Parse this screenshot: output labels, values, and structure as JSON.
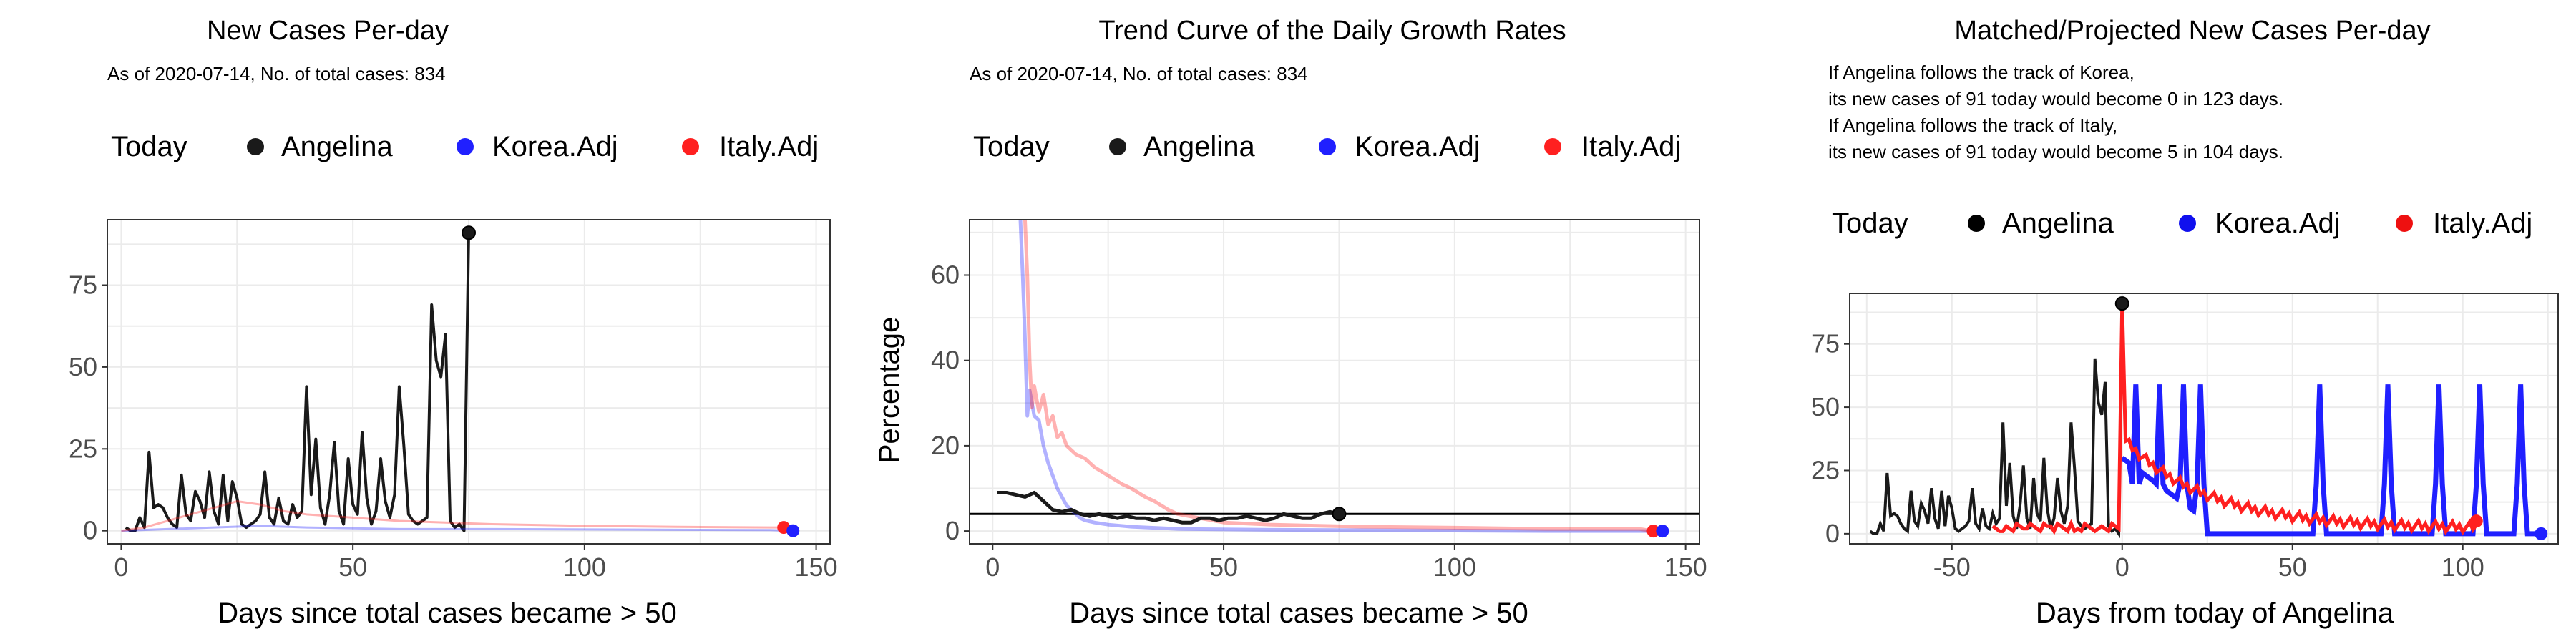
{
  "colors": {
    "angelina": "#1a1a1a",
    "korea": "#2020ff",
    "italy": "#ff2020",
    "grid": "#ebebeb",
    "panel_border": "#333333"
  },
  "chart_data": [
    {
      "type": "line",
      "title": "New Cases Per-day",
      "subtitle": "As of 2020-07-14, No. of total cases: 834",
      "xlabel": "Days since total cases became > 50",
      "ylabel": "",
      "xlim": [
        -3,
        153
      ],
      "ylim": [
        -4,
        95
      ],
      "x_ticks": [
        0,
        50,
        100,
        150
      ],
      "y_ticks": [
        0,
        25,
        50,
        75
      ],
      "grid": true,
      "legend": {
        "title": "Today",
        "position": "top",
        "entries": [
          "Angelina",
          "Korea.Adj",
          "Italy.Adj"
        ]
      },
      "series": [
        {
          "name": "Angelina",
          "color_key": "angelina",
          "opacity": 1,
          "width": 4,
          "x": [
            1,
            2,
            3,
            4,
            5,
            6,
            7,
            8,
            9,
            10,
            11,
            12,
            13,
            14,
            15,
            16,
            17,
            18,
            19,
            20,
            21,
            22,
            23,
            24,
            25,
            26,
            27,
            28,
            29,
            30,
            31,
            32,
            33,
            34,
            35,
            36,
            37,
            38,
            39,
            40,
            41,
            42,
            43,
            44,
            45,
            46,
            47,
            48,
            49,
            50,
            51,
            52,
            53,
            54,
            55,
            56,
            57,
            58,
            59,
            60,
            61,
            62,
            63,
            64,
            65,
            66,
            67,
            68,
            69,
            70,
            71,
            72,
            73,
            74,
            75
          ],
          "y": [
            1,
            0,
            0,
            4,
            1,
            24,
            7,
            8,
            7,
            4,
            2,
            1,
            17,
            5,
            3,
            12,
            9,
            4,
            18,
            6,
            2,
            17,
            3,
            15,
            10,
            2,
            1,
            2,
            3,
            5,
            18,
            4,
            2,
            10,
            3,
            2,
            8,
            4,
            6,
            44,
            11,
            28,
            7,
            2,
            11,
            27,
            6,
            2,
            22,
            8,
            5,
            30,
            10,
            2,
            6,
            22,
            9,
            4,
            11,
            44,
            26,
            5,
            3,
            2,
            3,
            4,
            69,
            52,
            47,
            60,
            3,
            1,
            2,
            0,
            91
          ]
        },
        {
          "name": "Korea.Adj",
          "color_key": "korea",
          "opacity": 0.35,
          "width": 3,
          "x": [
            0,
            10,
            20,
            30,
            40,
            60,
            80,
            100,
            120,
            140,
            145
          ],
          "y": [
            0,
            0.5,
            1,
            1.5,
            1,
            0.5,
            0.5,
            0.4,
            0.3,
            0.2,
            0
          ]
        },
        {
          "name": "Italy.Adj",
          "color_key": "italy",
          "opacity": 0.35,
          "width": 3,
          "x": [
            0,
            5,
            10,
            15,
            20,
            25,
            30,
            35,
            40,
            50,
            60,
            70,
            80,
            100,
            120,
            140,
            143
          ],
          "y": [
            0,
            1,
            3,
            5,
            7,
            9,
            8,
            6,
            5,
            4,
            3,
            2.5,
            2,
            1.5,
            1.2,
            1,
            1
          ]
        }
      ],
      "today_points": [
        {
          "series": "Angelina",
          "x": 75,
          "y": 91
        },
        {
          "series": "Italy.Adj",
          "x": 143,
          "y": 1
        },
        {
          "series": "Korea.Adj",
          "x": 145,
          "y": 0
        }
      ]
    },
    {
      "type": "line",
      "title": "Trend Curve of the Daily Growth Rates",
      "subtitle": "As of 2020-07-14, No. of total cases: 834",
      "xlabel": "Days since total cases became > 50",
      "ylabel": "Percentage",
      "xlim": [
        -5,
        153
      ],
      "ylim": [
        -3,
        73
      ],
      "x_ticks": [
        0,
        50,
        100,
        150
      ],
      "y_ticks": [
        0,
        20,
        40,
        60
      ],
      "grid": true,
      "hline": 4,
      "legend": {
        "title": "Today",
        "position": "top",
        "entries": [
          "Angelina",
          "Korea.Adj",
          "Italy.Adj"
        ]
      },
      "series": [
        {
          "name": "Korea.Adj",
          "color_key": "korea",
          "opacity": 0.35,
          "width": 5,
          "x": [
            6,
            6.5,
            7,
            7.5,
            8,
            9,
            10,
            11,
            12,
            13,
            14,
            15,
            16,
            17,
            18,
            19,
            20,
            22,
            25,
            30,
            40,
            60,
            80,
            100,
            120,
            140,
            145
          ],
          "y": [
            73,
            60,
            45,
            27,
            33,
            27,
            26,
            20,
            16,
            13,
            10,
            8,
            6,
            5,
            4,
            3,
            2.5,
            2,
            1.5,
            1,
            0.5,
            0.3,
            0.2,
            0.1,
            0,
            0,
            0
          ]
        },
        {
          "name": "Italy.Adj",
          "color_key": "italy",
          "opacity": 0.35,
          "width": 5,
          "x": [
            7,
            7.5,
            8,
            8.5,
            9,
            10,
            11,
            12,
            13,
            14,
            15,
            16,
            18,
            20,
            22,
            25,
            28,
            30,
            33,
            35,
            38,
            40,
            45,
            50,
            60,
            80,
            100,
            120,
            140,
            143
          ],
          "y": [
            73,
            60,
            40,
            29,
            34,
            28,
            32,
            25,
            27,
            22,
            23,
            20,
            18,
            17,
            15,
            13,
            11,
            10,
            8,
            7,
            5,
            4,
            3,
            2,
            1.5,
            1,
            0.8,
            0.5,
            0.5,
            0
          ]
        },
        {
          "name": "Angelina",
          "color_key": "angelina",
          "opacity": 1,
          "width": 5,
          "x": [
            1,
            3,
            5,
            7,
            9,
            11,
            13,
            15,
            17,
            19,
            21,
            23,
            25,
            27,
            29,
            31,
            33,
            35,
            37,
            39,
            41,
            43,
            45,
            47,
            49,
            51,
            53,
            55,
            57,
            59,
            61,
            63,
            65,
            67,
            69,
            71,
            73,
            75
          ],
          "y": [
            9,
            9,
            8.5,
            8,
            9,
            7,
            5,
            4.5,
            5,
            4,
            3.5,
            4,
            3.5,
            3,
            3.5,
            3,
            3,
            2.5,
            3,
            2.5,
            2,
            2,
            3,
            3,
            2.5,
            3,
            3,
            3.5,
            3,
            2.5,
            3,
            4,
            3.5,
            3,
            3,
            4,
            4.5,
            4
          ]
        }
      ],
      "today_points": [
        {
          "series": "Angelina",
          "x": 75,
          "y": 4
        },
        {
          "series": "Italy.Adj",
          "x": 143,
          "y": 0
        },
        {
          "series": "Korea.Adj",
          "x": 145,
          "y": 0
        }
      ]
    },
    {
      "type": "line",
      "title": "Matched/Projected New Cases Per-day",
      "subtitle_lines": [
        "If Angelina follows the track of Korea,",
        "its new cases of 91 today would become 0 in 123 days.",
        "If Angelina follows the track of Italy,",
        "its new cases of 91 today would become 5 in 104 days."
      ],
      "xlabel": "Days from today of Angelina",
      "ylabel": "",
      "xlim": [
        -80,
        128
      ],
      "ylim": [
        -4,
        95
      ],
      "x_ticks": [
        -50,
        0,
        50,
        100
      ],
      "y_ticks": [
        0,
        25,
        50,
        75
      ],
      "grid": true,
      "legend": {
        "title": "Today",
        "position": "top",
        "entries": [
          "Angelina",
          "Korea.Adj",
          "Italy.Adj"
        ]
      },
      "today_points": [
        {
          "series": "Angelina",
          "x": 0,
          "y": 91
        },
        {
          "series": "Korea.Adj",
          "x": 123,
          "y": 0
        },
        {
          "series": "Italy.Adj",
          "x": 104,
          "y": 5
        }
      ]
    }
  ]
}
